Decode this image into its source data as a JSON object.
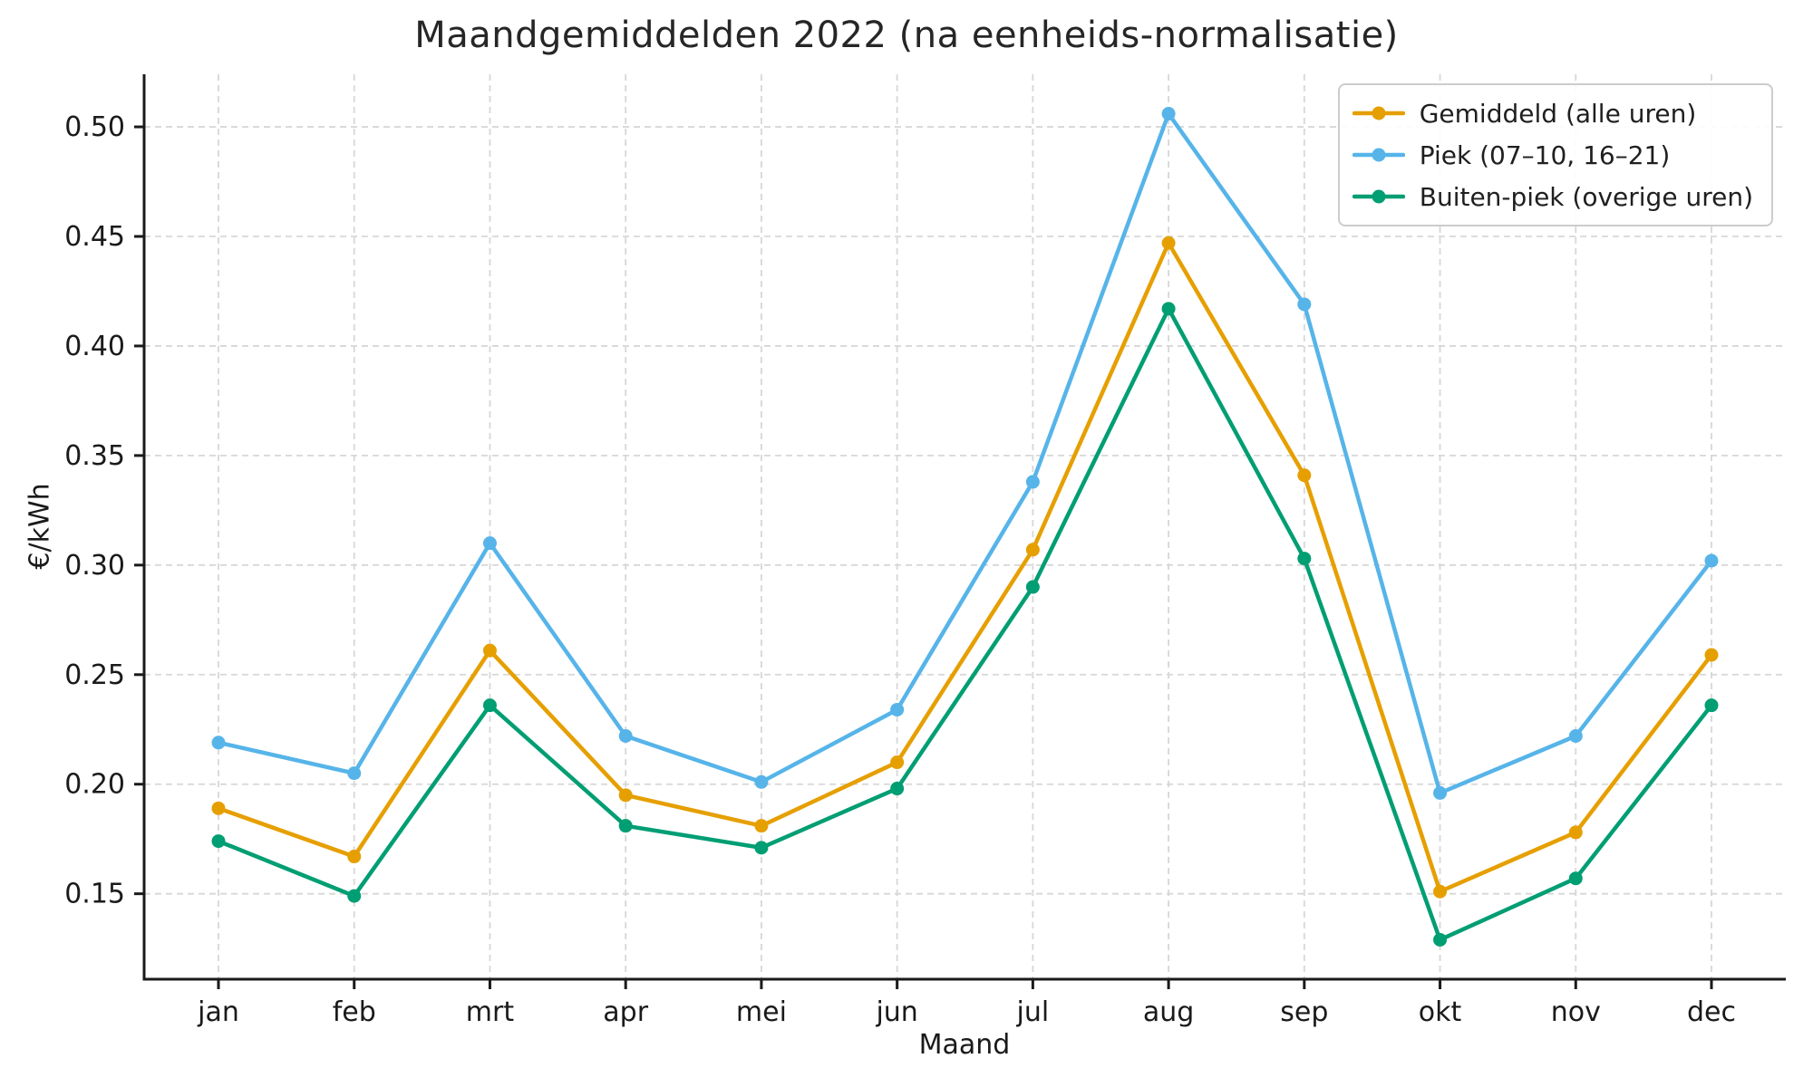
{
  "chart_data": {
    "type": "line",
    "title": "Maandgemiddelden 2022 (na eenheids-normalisatie)",
    "xlabel": "Maand",
    "ylabel": "€/kWh",
    "categories": [
      "jan",
      "feb",
      "mrt",
      "apr",
      "mei",
      "jun",
      "jul",
      "aug",
      "sep",
      "okt",
      "nov",
      "dec"
    ],
    "series": [
      {
        "name": "Gemiddeld (alle uren)",
        "color": "#E69F00",
        "values": [
          0.189,
          0.167,
          0.261,
          0.195,
          0.181,
          0.21,
          0.307,
          0.447,
          0.341,
          0.151,
          0.178,
          0.259
        ]
      },
      {
        "name": "Piek (07–10, 16–21)",
        "color": "#56B4E9",
        "values": [
          0.219,
          0.205,
          0.31,
          0.222,
          0.201,
          0.234,
          0.338,
          0.506,
          0.419,
          0.196,
          0.222,
          0.302
        ]
      },
      {
        "name": "Buiten-piek (overige uren)",
        "color": "#009E73",
        "values": [
          0.174,
          0.149,
          0.236,
          0.181,
          0.171,
          0.198,
          0.29,
          0.417,
          0.303,
          0.129,
          0.157,
          0.236
        ]
      }
    ],
    "yticks": [
      0.15,
      0.2,
      0.25,
      0.3,
      0.35,
      0.4,
      0.45,
      0.5
    ],
    "ylim": [
      0.111,
      0.524
    ],
    "grid": true,
    "legend_position": "top-right",
    "colors": {
      "axis": "#1a1a1a",
      "grid": "#d7d7d7",
      "tick_label": "#1a1a1a",
      "background": "#ffffff"
    }
  }
}
